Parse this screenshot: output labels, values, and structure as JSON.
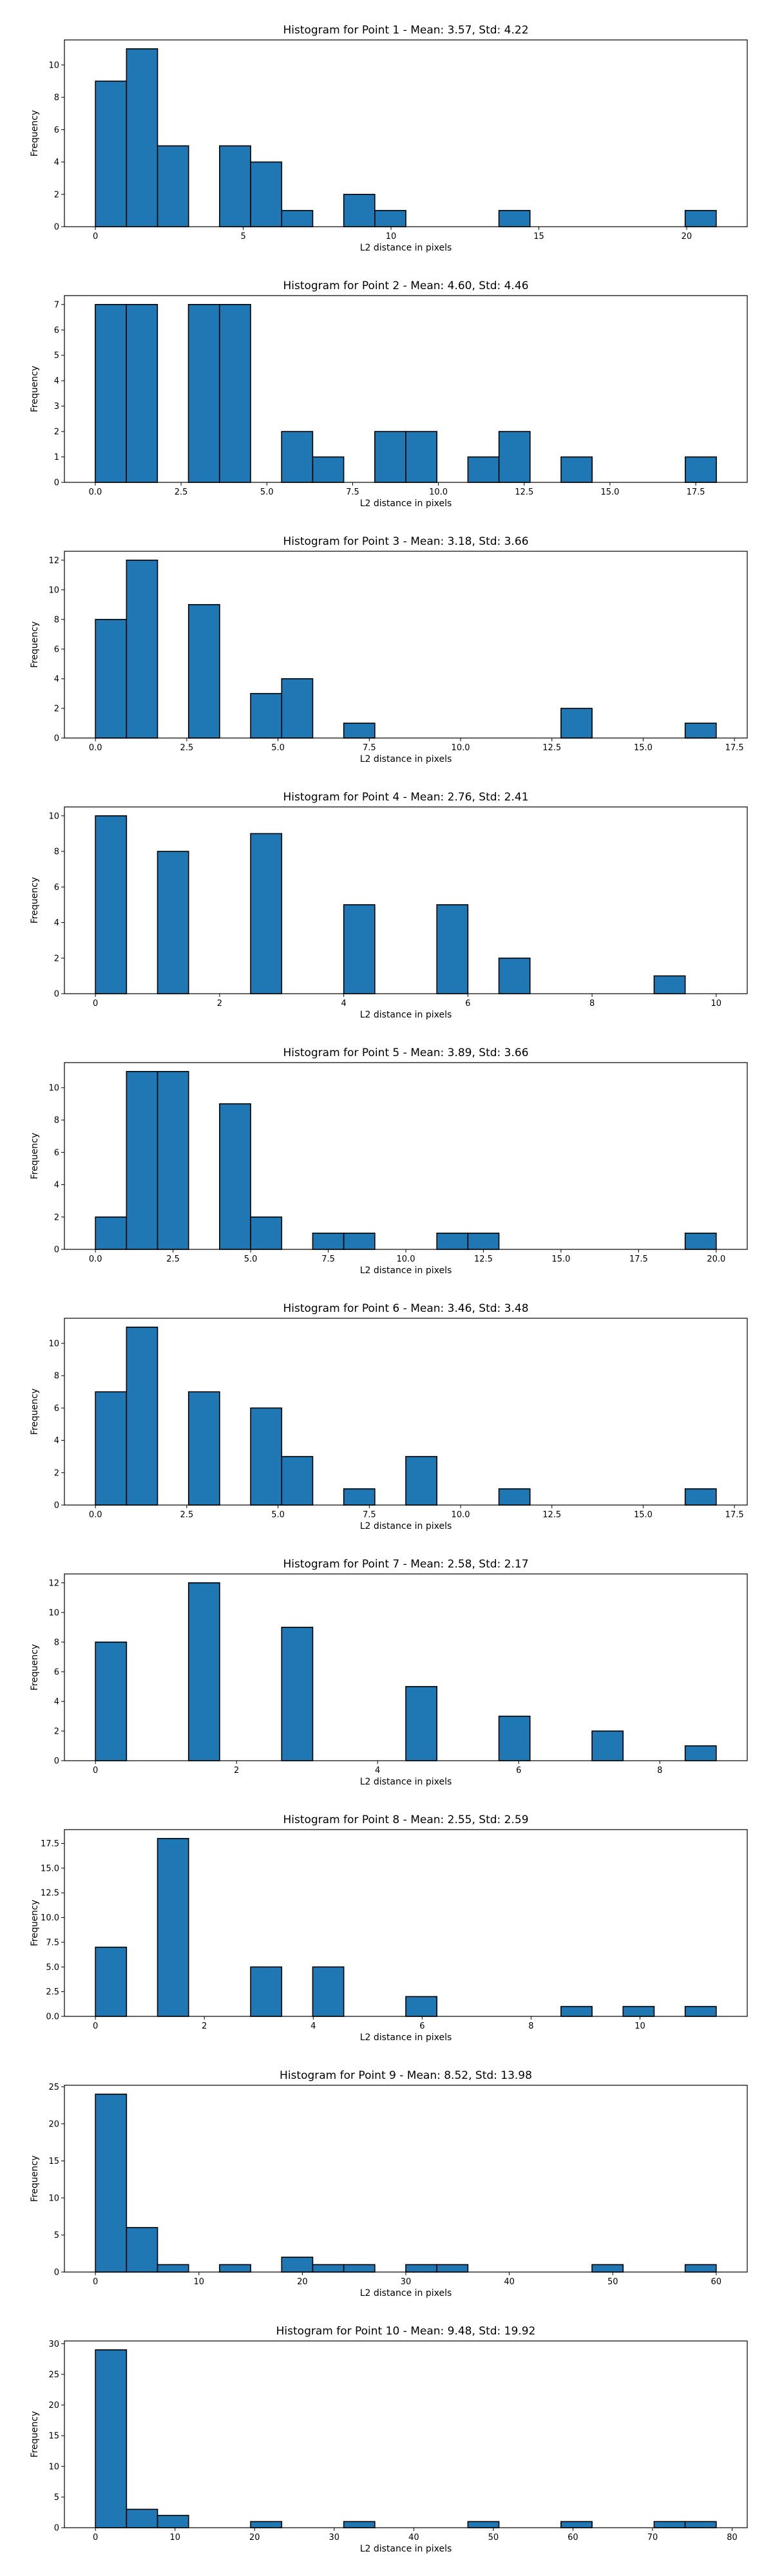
{
  "chart_data": [
    {
      "type": "bar",
      "title": "Histogram for Point 1 - Mean: 3.57, Std: 4.22",
      "xlabel": "L2 distance in pixels",
      "ylabel": "Frequency",
      "xlim": [
        -1.05,
        22.05
      ],
      "ylim": [
        0,
        11.55
      ],
      "xticks": [
        "0",
        "5",
        "10",
        "15",
        "20"
      ],
      "xtick_values": [
        0,
        5,
        10,
        15,
        20
      ],
      "yticks": [
        "0",
        "2",
        "4",
        "6",
        "8",
        "10"
      ],
      "ytick_values": [
        0,
        2,
        4,
        6,
        8,
        10
      ],
      "bins": [
        0,
        1.05,
        2.1,
        3.15,
        4.2,
        5.25,
        6.3,
        7.35,
        8.4,
        9.45,
        10.5,
        11.55,
        12.6,
        13.65,
        14.7,
        15.75,
        16.8,
        17.85,
        18.9,
        19.95,
        21.0
      ],
      "counts": [
        9,
        11,
        5,
        0,
        5,
        4,
        1,
        0,
        2,
        1,
        0,
        0,
        0,
        1,
        0,
        0,
        0,
        0,
        0,
        1
      ],
      "grid": false
    },
    {
      "type": "bar",
      "title": "Histogram for Point 2 - Mean: 4.60, Std: 4.46",
      "xlabel": "L2 distance in pixels",
      "ylabel": "Frequency",
      "xlim": [
        -0.9,
        19.0
      ],
      "ylim": [
        0,
        7.35
      ],
      "xticks": [
        "0.0",
        "2.5",
        "5.0",
        "7.5",
        "10.0",
        "12.5",
        "15.0",
        "17.5"
      ],
      "xtick_values": [
        0,
        2.5,
        5,
        7.5,
        10,
        12.5,
        15,
        17.5
      ],
      "yticks": [
        "0",
        "1",
        "2",
        "3",
        "4",
        "5",
        "6",
        "7"
      ],
      "ytick_values": [
        0,
        1,
        2,
        3,
        4,
        5,
        6,
        7
      ],
      "bins": [
        0,
        0.905,
        1.81,
        2.715,
        3.62,
        4.525,
        5.43,
        6.335,
        7.24,
        8.145,
        9.05,
        9.955,
        10.86,
        11.765,
        12.67,
        13.575,
        14.48,
        15.385,
        16.29,
        17.195,
        18.1
      ],
      "counts": [
        7,
        7,
        0,
        7,
        7,
        0,
        2,
        1,
        0,
        2,
        2,
        0,
        1,
        2,
        0,
        1,
        0,
        0,
        0,
        1
      ],
      "grid": false
    },
    {
      "type": "bar",
      "title": "Histogram for Point 3 - Mean: 3.18, Std: 3.66",
      "xlabel": "L2 distance in pixels",
      "ylabel": "Frequency",
      "xlim": [
        -0.85,
        17.85
      ],
      "ylim": [
        0,
        12.6
      ],
      "xticks": [
        "0.0",
        "2.5",
        "5.0",
        "7.5",
        "10.0",
        "12.5",
        "15.0",
        "17.5"
      ],
      "xtick_values": [
        0,
        2.5,
        5,
        7.5,
        10,
        12.5,
        15,
        17.5
      ],
      "yticks": [
        "0",
        "2",
        "4",
        "6",
        "8",
        "10",
        "12"
      ],
      "ytick_values": [
        0,
        2,
        4,
        6,
        8,
        10,
        12
      ],
      "bins": [
        0,
        0.85,
        1.7,
        2.55,
        3.4,
        4.25,
        5.1,
        5.95,
        6.8,
        7.65,
        8.5,
        9.35,
        10.2,
        11.05,
        11.9,
        12.75,
        13.6,
        14.45,
        15.3,
        16.15,
        17.0
      ],
      "counts": [
        8,
        12,
        0,
        9,
        0,
        3,
        4,
        0,
        1,
        0,
        0,
        0,
        0,
        0,
        0,
        2,
        0,
        0,
        0,
        1
      ],
      "grid": false
    },
    {
      "type": "bar",
      "title": "Histogram for Point 4 - Mean: 2.76, Std: 2.41",
      "xlabel": "L2 distance in pixels",
      "ylabel": "Frequency",
      "xlim": [
        -0.5,
        10.5
      ],
      "ylim": [
        0,
        10.5
      ],
      "xticks": [
        "0",
        "2",
        "4",
        "6",
        "8",
        "10"
      ],
      "xtick_values": [
        0,
        2,
        4,
        6,
        8,
        10
      ],
      "yticks": [
        "0",
        "2",
        "4",
        "6",
        "8",
        "10"
      ],
      "ytick_values": [
        0,
        2,
        4,
        6,
        8,
        10
      ],
      "bins": [
        0,
        0.5,
        1.0,
        1.5,
        2.0,
        2.5,
        3.0,
        3.5,
        4.0,
        4.5,
        5.0,
        5.5,
        6.0,
        6.5,
        7.0,
        7.5,
        8.0,
        8.5,
        9.0,
        9.5,
        10.0
      ],
      "counts": [
        10,
        0,
        8,
        0,
        0,
        9,
        0,
        0,
        5,
        0,
        0,
        5,
        0,
        2,
        0,
        0,
        0,
        0,
        1,
        0
      ],
      "grid": false
    },
    {
      "type": "bar",
      "title": "Histogram for Point 5 - Mean: 3.89, Std: 3.66",
      "xlabel": "L2 distance in pixels",
      "ylabel": "Frequency",
      "xlim": [
        -1.0,
        21.0
      ],
      "ylim": [
        0,
        11.55
      ],
      "xticks": [
        "0.0",
        "2.5",
        "5.0",
        "7.5",
        "10.0",
        "12.5",
        "15.0",
        "17.5",
        "20.0"
      ],
      "xtick_values": [
        0,
        2.5,
        5,
        7.5,
        10,
        12.5,
        15,
        17.5,
        20
      ],
      "yticks": [
        "0",
        "2",
        "4",
        "6",
        "8",
        "10"
      ],
      "ytick_values": [
        0,
        2,
        4,
        6,
        8,
        10
      ],
      "bins": [
        0,
        1.0,
        2.0,
        3.0,
        4.0,
        5.0,
        6.0,
        7.0,
        8.0,
        9.0,
        10.0,
        11.0,
        12.0,
        13.0,
        14.0,
        15.0,
        16.0,
        17.0,
        18.0,
        19.0,
        20.0
      ],
      "counts": [
        2,
        11,
        11,
        0,
        9,
        2,
        0,
        1,
        1,
        0,
        0,
        1,
        1,
        0,
        0,
        0,
        0,
        0,
        0,
        1
      ],
      "grid": false
    },
    {
      "type": "bar",
      "title": "Histogram for Point 6 - Mean: 3.46, Std: 3.48",
      "xlabel": "L2 distance in pixels",
      "ylabel": "Frequency",
      "xlim": [
        -0.85,
        17.85
      ],
      "ylim": [
        0,
        11.55
      ],
      "xticks": [
        "0.0",
        "2.5",
        "5.0",
        "7.5",
        "10.0",
        "12.5",
        "15.0",
        "17.5"
      ],
      "xtick_values": [
        0,
        2.5,
        5,
        7.5,
        10,
        12.5,
        15,
        17.5
      ],
      "yticks": [
        "0",
        "2",
        "4",
        "6",
        "8",
        "10"
      ],
      "ytick_values": [
        0,
        2,
        4,
        6,
        8,
        10
      ],
      "bins": [
        0,
        0.85,
        1.7,
        2.55,
        3.4,
        4.25,
        5.1,
        5.95,
        6.8,
        7.65,
        8.5,
        9.35,
        10.2,
        11.05,
        11.9,
        12.75,
        13.6,
        14.45,
        15.3,
        16.15,
        17.0
      ],
      "counts": [
        7,
        11,
        0,
        7,
        0,
        6,
        3,
        0,
        1,
        0,
        3,
        0,
        0,
        1,
        0,
        0,
        0,
        0,
        0,
        1
      ],
      "grid": false
    },
    {
      "type": "bar",
      "title": "Histogram for Point 7 - Mean: 2.58, Std: 2.17",
      "xlabel": "L2 distance in pixels",
      "ylabel": "Frequency",
      "xlim": [
        -0.44,
        9.24
      ],
      "ylim": [
        0,
        12.6
      ],
      "xticks": [
        "0",
        "2",
        "4",
        "6",
        "8"
      ],
      "xtick_values": [
        0,
        2,
        4,
        6,
        8
      ],
      "yticks": [
        "0",
        "2",
        "4",
        "6",
        "8",
        "10",
        "12"
      ],
      "ytick_values": [
        0,
        2,
        4,
        6,
        8,
        10,
        12
      ],
      "bins": [
        0,
        0.44,
        0.88,
        1.32,
        1.76,
        2.2,
        2.64,
        3.08,
        3.52,
        3.96,
        4.4,
        4.84,
        5.28,
        5.72,
        6.16,
        6.6,
        7.04,
        7.48,
        7.92,
        8.36,
        8.8
      ],
      "counts": [
        8,
        0,
        0,
        12,
        0,
        0,
        9,
        0,
        0,
        0,
        5,
        0,
        0,
        3,
        0,
        0,
        2,
        0,
        0,
        1
      ],
      "grid": false
    },
    {
      "type": "bar",
      "title": "Histogram for Point 8 - Mean: 2.55, Std: 2.59",
      "xlabel": "L2 distance in pixels",
      "ylabel": "Frequency",
      "xlim": [
        -0.57,
        11.97
      ],
      "ylim": [
        0,
        18.9
      ],
      "xticks": [
        "0",
        "2",
        "4",
        "6",
        "8",
        "10"
      ],
      "xtick_values": [
        0,
        2,
        4,
        6,
        8,
        10
      ],
      "yticks": [
        "0.0",
        "2.5",
        "5.0",
        "7.5",
        "10.0",
        "12.5",
        "15.0",
        "17.5"
      ],
      "ytick_values": [
        0,
        2.5,
        5,
        7.5,
        10,
        12.5,
        15,
        17.5
      ],
      "bins": [
        0,
        0.57,
        1.14,
        1.71,
        2.28,
        2.85,
        3.42,
        3.99,
        4.56,
        5.13,
        5.7,
        6.27,
        6.84,
        7.41,
        7.98,
        8.55,
        9.12,
        9.69,
        10.26,
        10.83,
        11.4
      ],
      "counts": [
        7,
        0,
        18,
        0,
        0,
        5,
        0,
        5,
        0,
        0,
        2,
        0,
        0,
        0,
        0,
        1,
        0,
        1,
        0,
        1
      ],
      "grid": false
    },
    {
      "type": "bar",
      "title": "Histogram for Point 9 - Mean: 8.52, Std: 13.98",
      "xlabel": "L2 distance in pixels",
      "ylabel": "Frequency",
      "xlim": [
        -3.0,
        63.0
      ],
      "ylim": [
        0,
        25.2
      ],
      "xticks": [
        "0",
        "10",
        "20",
        "30",
        "40",
        "50",
        "60"
      ],
      "xtick_values": [
        0,
        10,
        20,
        30,
        40,
        50,
        60
      ],
      "yticks": [
        "0",
        "5",
        "10",
        "15",
        "20",
        "25"
      ],
      "ytick_values": [
        0,
        5,
        10,
        15,
        20,
        25
      ],
      "bins": [
        0,
        3.0,
        6.0,
        9.0,
        12.0,
        15.0,
        18.0,
        21.0,
        24.0,
        27.0,
        30.0,
        33.0,
        36.0,
        39.0,
        42.0,
        45.0,
        48.0,
        51.0,
        54.0,
        57.0,
        60.0
      ],
      "counts": [
        24,
        6,
        1,
        0,
        1,
        0,
        2,
        1,
        1,
        0,
        1,
        1,
        0,
        0,
        0,
        0,
        1,
        0,
        0,
        1
      ],
      "grid": false
    },
    {
      "type": "bar",
      "title": "Histogram for Point 10 - Mean: 9.48, Std: 19.92",
      "xlabel": "L2 distance in pixels",
      "ylabel": "Frequency",
      "xlim": [
        -3.9,
        81.9
      ],
      "ylim": [
        0,
        30.45
      ],
      "xticks": [
        "0",
        "10",
        "20",
        "30",
        "40",
        "50",
        "60",
        "70",
        "80"
      ],
      "xtick_values": [
        0,
        10,
        20,
        30,
        40,
        50,
        60,
        70,
        80
      ],
      "yticks": [
        "0",
        "5",
        "10",
        "15",
        "20",
        "25",
        "30"
      ],
      "ytick_values": [
        0,
        5,
        10,
        15,
        20,
        25,
        30
      ],
      "bins": [
        0,
        3.9,
        7.8,
        11.7,
        15.6,
        19.5,
        23.4,
        27.3,
        31.2,
        35.1,
        39.0,
        42.9,
        46.8,
        50.7,
        54.6,
        58.5,
        62.4,
        66.3,
        70.2,
        74.1,
        78.0
      ],
      "counts": [
        29,
        3,
        2,
        0,
        0,
        1,
        0,
        0,
        1,
        0,
        0,
        0,
        1,
        0,
        0,
        1,
        0,
        0,
        1,
        1
      ],
      "grid": false
    }
  ]
}
